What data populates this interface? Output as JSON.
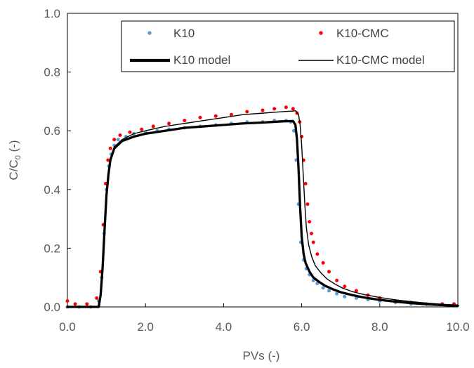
{
  "chart_data": {
    "type": "scatter",
    "title": "",
    "xlabel": "PVs (-)",
    "ylabel": {
      "main": "C/C",
      "sub": "0",
      "suffix": " (-)"
    },
    "xlim": [
      0,
      10
    ],
    "ylim": [
      0,
      1
    ],
    "xticks": [
      "0.0",
      "2.0",
      "4.0",
      "6.0",
      "8.0",
      "10.0"
    ],
    "yticks": [
      "0.0",
      "0.2",
      "0.4",
      "0.6",
      "0.8",
      "1.0"
    ],
    "grid": false,
    "legend_position": "top-right",
    "series": [
      {
        "name": "K10",
        "kind": "points",
        "color": "#5b9bd5",
        "x": [
          0.0,
          0.3,
          0.6,
          0.8,
          0.88,
          0.94,
          1.0,
          1.06,
          1.12,
          1.2,
          1.3,
          1.5,
          1.7,
          2.0,
          2.3,
          2.6,
          3.0,
          3.4,
          3.8,
          4.2,
          4.6,
          5.0,
          5.3,
          5.6,
          5.72,
          5.8,
          5.86,
          5.92,
          5.98,
          6.05,
          6.12,
          6.2,
          6.3,
          6.4,
          6.55,
          6.7,
          6.9,
          7.1,
          7.4,
          7.7,
          8.0,
          8.4,
          8.8,
          9.2,
          9.6,
          9.9
        ],
        "y": [
          0.0,
          0.0,
          0.0,
          0.02,
          0.1,
          0.25,
          0.4,
          0.48,
          0.52,
          0.55,
          0.57,
          0.58,
          0.59,
          0.595,
          0.6,
          0.605,
          0.61,
          0.615,
          0.62,
          0.625,
          0.63,
          0.63,
          0.635,
          0.635,
          0.63,
          0.6,
          0.5,
          0.35,
          0.22,
          0.16,
          0.13,
          0.11,
          0.09,
          0.08,
          0.065,
          0.055,
          0.045,
          0.035,
          0.03,
          0.025,
          0.02,
          0.015,
          0.01,
          0.01,
          0.01,
          0.01
        ]
      },
      {
        "name": "K10-CMC",
        "kind": "points",
        "color": "#ff0000",
        "x": [
          0.0,
          0.2,
          0.5,
          0.75,
          0.85,
          0.92,
          0.98,
          1.04,
          1.1,
          1.2,
          1.35,
          1.6,
          1.9,
          2.2,
          2.6,
          3.0,
          3.4,
          3.8,
          4.2,
          4.6,
          5.0,
          5.3,
          5.6,
          5.78,
          5.88,
          5.95,
          6.0,
          6.05,
          6.1,
          6.15,
          6.2,
          6.25,
          6.3,
          6.4,
          6.55,
          6.7,
          6.9,
          7.1,
          7.4,
          7.7,
          8.0,
          8.4,
          8.8,
          9.2,
          9.6,
          9.9
        ],
        "y": [
          0.02,
          0.01,
          0.01,
          0.03,
          0.12,
          0.28,
          0.42,
          0.5,
          0.54,
          0.57,
          0.585,
          0.595,
          0.605,
          0.615,
          0.625,
          0.635,
          0.645,
          0.65,
          0.655,
          0.665,
          0.67,
          0.675,
          0.68,
          0.675,
          0.66,
          0.63,
          0.58,
          0.5,
          0.42,
          0.35,
          0.29,
          0.25,
          0.22,
          0.18,
          0.15,
          0.12,
          0.09,
          0.07,
          0.055,
          0.04,
          0.03,
          0.02,
          0.015,
          0.01,
          0.01,
          0.01
        ]
      },
      {
        "name": "K10 model",
        "kind": "line",
        "color": "#000000",
        "weight": "thick",
        "x": [
          0.0,
          0.8,
          0.85,
          0.9,
          0.95,
          1.0,
          1.05,
          1.1,
          1.2,
          1.4,
          1.7,
          2.0,
          2.5,
          3.0,
          3.5,
          4.0,
          4.5,
          5.0,
          5.5,
          5.78,
          5.84,
          5.88,
          5.92,
          5.96,
          6.0,
          6.05,
          6.1,
          6.2,
          6.3,
          6.45,
          6.6,
          6.8,
          7.0,
          7.3,
          7.6,
          8.0,
          8.4,
          8.8,
          9.2,
          9.6,
          10.0
        ],
        "y": [
          0.0,
          0.0,
          0.04,
          0.13,
          0.26,
          0.38,
          0.45,
          0.5,
          0.54,
          0.565,
          0.58,
          0.59,
          0.6,
          0.61,
          0.615,
          0.62,
          0.625,
          0.628,
          0.632,
          0.633,
          0.62,
          0.57,
          0.47,
          0.34,
          0.24,
          0.18,
          0.15,
          0.12,
          0.1,
          0.085,
          0.072,
          0.06,
          0.05,
          0.04,
          0.032,
          0.024,
          0.018,
          0.013,
          0.009,
          0.006,
          0.004
        ]
      },
      {
        "name": "K10-CMC model",
        "kind": "line",
        "color": "#000000",
        "weight": "thin",
        "x": [
          0.0,
          0.82,
          0.87,
          0.92,
          0.97,
          1.02,
          1.07,
          1.12,
          1.2,
          1.4,
          1.7,
          2.0,
          2.5,
          3.0,
          3.5,
          4.0,
          4.5,
          5.0,
          5.5,
          5.85,
          5.92,
          5.96,
          6.0,
          6.04,
          6.08,
          6.12,
          6.18,
          6.26,
          6.35,
          6.5,
          6.65,
          6.85,
          7.05,
          7.3,
          7.6,
          8.0,
          8.4,
          8.8,
          9.2,
          9.6,
          10.0
        ],
        "y": [
          0.0,
          0.0,
          0.05,
          0.15,
          0.28,
          0.4,
          0.47,
          0.51,
          0.545,
          0.57,
          0.59,
          0.6,
          0.615,
          0.625,
          0.635,
          0.645,
          0.655,
          0.66,
          0.665,
          0.668,
          0.655,
          0.62,
          0.55,
          0.45,
          0.35,
          0.27,
          0.21,
          0.17,
          0.14,
          0.115,
          0.095,
          0.078,
          0.064,
          0.052,
          0.042,
          0.032,
          0.024,
          0.018,
          0.013,
          0.009,
          0.006
        ]
      }
    ]
  }
}
